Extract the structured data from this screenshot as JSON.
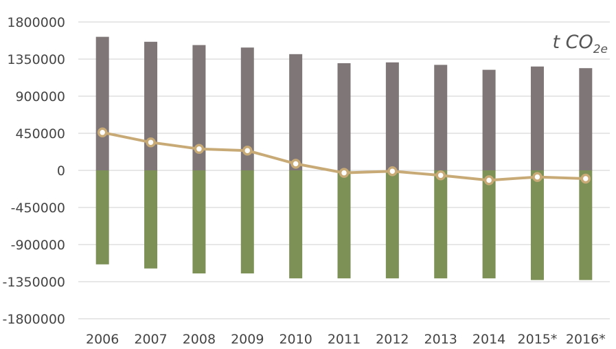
{
  "chart_data": {
    "type": "bar",
    "title": "",
    "unit_label": {
      "main": "t CO",
      "sub": "2e"
    },
    "categories": [
      "2006",
      "2007",
      "2008",
      "2009",
      "2010",
      "2011",
      "2012",
      "2013",
      "2014",
      "2015*",
      "2016*"
    ],
    "y_ticks": [
      "1800000",
      "1350000",
      "900000",
      "450000",
      "0",
      "-450000",
      "-900000",
      "-1350000",
      "-1800000"
    ],
    "ylim": [
      -1800000,
      1800000
    ],
    "grid": true,
    "series": [
      {
        "kind": "bar",
        "color": "#7f7777",
        "values": [
          1620000,
          1560000,
          1520000,
          1490000,
          1410000,
          1300000,
          1310000,
          1280000,
          1220000,
          1260000,
          1240000
        ]
      },
      {
        "kind": "bar",
        "color": "#7d9157",
        "values": [
          -1140000,
          -1190000,
          -1250000,
          -1250000,
          -1310000,
          -1310000,
          -1310000,
          -1310000,
          -1310000,
          -1330000,
          -1330000
        ]
      },
      {
        "kind": "line",
        "color": "#c8aa77",
        "values": [
          460000,
          340000,
          260000,
          240000,
          80000,
          -30000,
          -10000,
          -60000,
          -120000,
          -80000,
          -100000
        ]
      }
    ]
  }
}
